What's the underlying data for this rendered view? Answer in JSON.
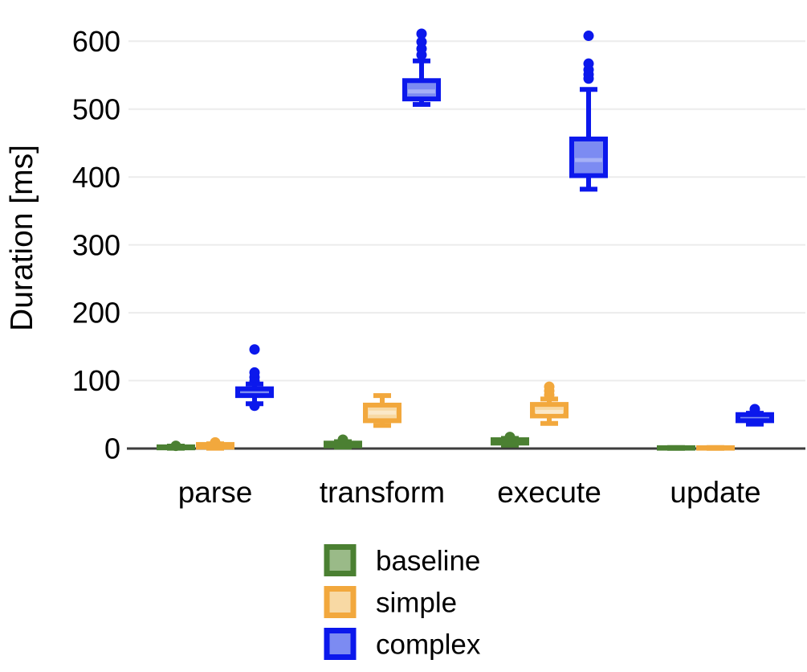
{
  "figure": {
    "background_color": "#ffffff",
    "axis_color": "#3d3d3d",
    "gridline_color": "#ececec",
    "text_color": "#000000"
  },
  "chart_data": {
    "type": "boxplot",
    "title": "",
    "xlabel": "",
    "ylabel": "Duration [ms]",
    "categories": [
      "parse",
      "transform",
      "execute",
      "update"
    ],
    "yticks": [
      0,
      100,
      200,
      300,
      400,
      500,
      600
    ],
    "ylim": [
      0,
      620
    ],
    "grid": "horizontal-light-gray",
    "legend_position": "bottom-center",
    "series": [
      {
        "name": "baseline",
        "border_color": "#4b8032",
        "fill_color": "#9aba88",
        "median_color": "#bcd2ae",
        "boxes": [
          {
            "category": "parse",
            "whisker_low": 0.5,
            "q1": 1,
            "median": 1.5,
            "q3": 2.5,
            "whisker_high": 3.5,
            "outliers": [
              4
            ]
          },
          {
            "category": "transform",
            "whisker_low": 2,
            "q1": 4,
            "median": 6,
            "q3": 8,
            "whisker_high": 10,
            "outliers": [
              13
            ]
          },
          {
            "category": "execute",
            "whisker_low": 5,
            "q1": 8,
            "median": 10,
            "q3": 13,
            "whisker_high": 15,
            "outliers": [
              17
            ]
          },
          {
            "category": "update",
            "whisker_low": 0.3,
            "q1": 0.5,
            "median": 0.8,
            "q3": 1.2,
            "whisker_high": 1.5,
            "outliers": []
          }
        ]
      },
      {
        "name": "simple",
        "border_color": "#f2a83d",
        "fill_color": "#f8d9a4",
        "median_color": "#fbe8c8",
        "boxes": [
          {
            "category": "parse",
            "whisker_low": 0.5,
            "q1": 2,
            "median": 4,
            "q3": 6,
            "whisker_high": 7,
            "outliers": [
              9
            ]
          },
          {
            "category": "transform",
            "whisker_low": 34,
            "q1": 41,
            "median": 53,
            "q3": 64,
            "whisker_high": 78,
            "outliers": []
          },
          {
            "category": "execute",
            "whisker_low": 37,
            "q1": 48,
            "median": 54,
            "q3": 65,
            "whisker_high": 73,
            "outliers": [
              79,
              85,
              91
            ]
          },
          {
            "category": "update",
            "whisker_low": 0.3,
            "q1": 0.5,
            "median": 0.8,
            "q3": 1.2,
            "whisker_high": 1.5,
            "outliers": []
          }
        ]
      },
      {
        "name": "complex",
        "border_color": "#0b18ec",
        "fill_color": "#7c8bf2",
        "median_color": "#a5b0f6",
        "boxes": [
          {
            "category": "parse",
            "whisker_low": 66,
            "q1": 78,
            "median": 83,
            "q3": 88,
            "whisker_high": 95,
            "outliers": [
              63,
              99,
              105,
              112,
              146
            ]
          },
          {
            "category": "transform",
            "whisker_low": 507,
            "q1": 515,
            "median": 526,
            "q3": 542,
            "whisker_high": 571,
            "outliers": [
              580,
              589,
              599,
              611
            ]
          },
          {
            "category": "execute",
            "whisker_low": 382,
            "q1": 402,
            "median": 425,
            "q3": 456,
            "whisker_high": 529,
            "outliers": [
              545,
              551,
              558,
              567,
              608
            ]
          },
          {
            "category": "update",
            "whisker_low": 36,
            "q1": 41,
            "median": 44,
            "q3": 50,
            "whisker_high": 52,
            "outliers": [
              58
            ]
          }
        ]
      }
    ]
  }
}
